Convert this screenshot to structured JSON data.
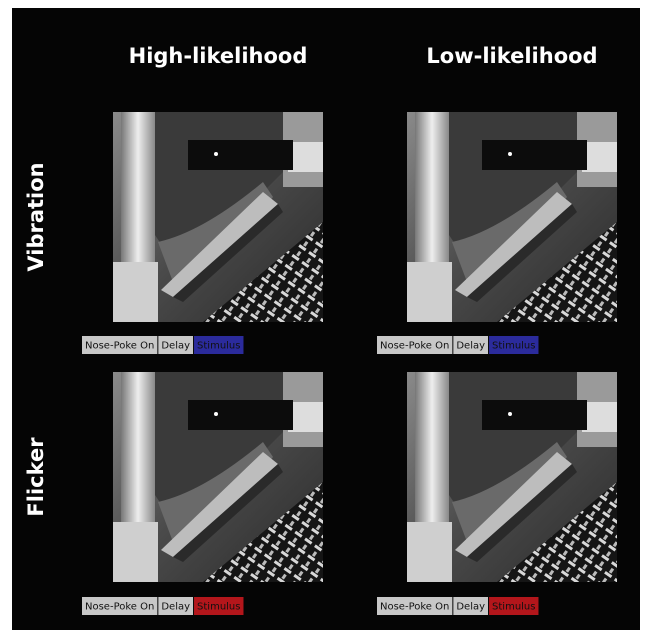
{
  "columns": [
    "High-likelihood",
    "Low-likelihood"
  ],
  "rows": [
    {
      "label": "Vibration",
      "color": "#2b2b9c",
      "panels": [
        [
          "Nose-Poke On",
          "Delay",
          "Stimulus"
        ],
        [
          "Nose-Poke On",
          "Delay",
          "Stimulus"
        ]
      ]
    },
    {
      "label": "Flicker",
      "color": "#b3161b",
      "panels": [
        [
          "Nose-Poke On",
          "Delay",
          "Stimulus"
        ],
        [
          "Nose-Poke On",
          "Delay",
          "Stimulus"
        ]
      ]
    }
  ]
}
